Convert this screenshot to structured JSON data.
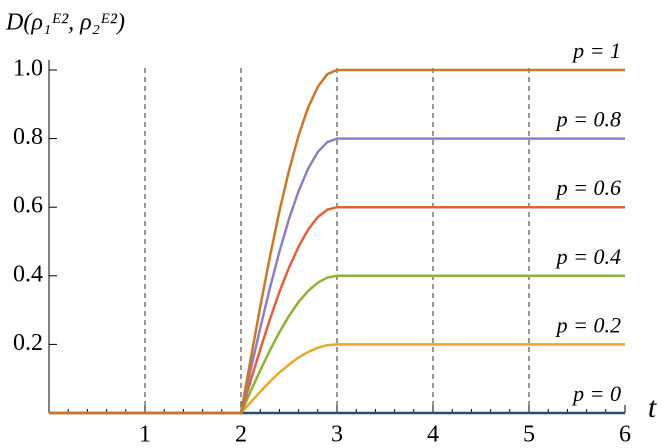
{
  "chart_data": {
    "type": "line",
    "y_label": "D(ρ₁ᴱ², ρ₂ᴱ²)",
    "x_label": "t",
    "x": [
      0,
      2,
      2.1,
      2.2,
      2.3,
      2.4,
      2.5,
      2.6,
      2.7,
      2.8,
      2.9,
      3,
      6
    ],
    "series": [
      {
        "name": "p = 0",
        "color": "#2c4a7e",
        "values": [
          0,
          0,
          0,
          0,
          0,
          0,
          0,
          0,
          0,
          0,
          0,
          0,
          0
        ]
      },
      {
        "name": "p = 0.2",
        "color": "#e8a72e",
        "values": [
          0,
          0,
          0.031,
          0.062,
          0.091,
          0.118,
          0.141,
          0.162,
          0.178,
          0.19,
          0.198,
          0.2,
          0.2
        ]
      },
      {
        "name": "p = 0.4",
        "color": "#8db23a",
        "values": [
          0,
          0,
          0.063,
          0.124,
          0.182,
          0.235,
          0.283,
          0.324,
          0.356,
          0.38,
          0.395,
          0.4,
          0.4
        ]
      },
      {
        "name": "p = 0.6",
        "color": "#e2613b",
        "values": [
          0,
          0,
          0.094,
          0.185,
          0.272,
          0.353,
          0.424,
          0.485,
          0.535,
          0.571,
          0.593,
          0.6,
          0.6
        ]
      },
      {
        "name": "p = 0.8",
        "color": "#8e80c0",
        "values": [
          0,
          0,
          0.125,
          0.247,
          0.363,
          0.47,
          0.566,
          0.647,
          0.713,
          0.761,
          0.79,
          0.8,
          0.8
        ]
      },
      {
        "name": "p = 1",
        "color": "#c8782a",
        "values": [
          0,
          0,
          0.156,
          0.309,
          0.454,
          0.588,
          0.707,
          0.809,
          0.891,
          0.951,
          0.988,
          1,
          1
        ]
      }
    ],
    "xlim": [
      0,
      6
    ],
    "xticks": [
      1,
      2,
      3,
      4,
      5,
      6
    ],
    "ylim": [
      0,
      1
    ],
    "yticks": [
      0.2,
      0.4,
      0.6,
      0.8,
      {
        "value": 1,
        "label": "1.0"
      }
    ],
    "grid": "x-dashed"
  }
}
